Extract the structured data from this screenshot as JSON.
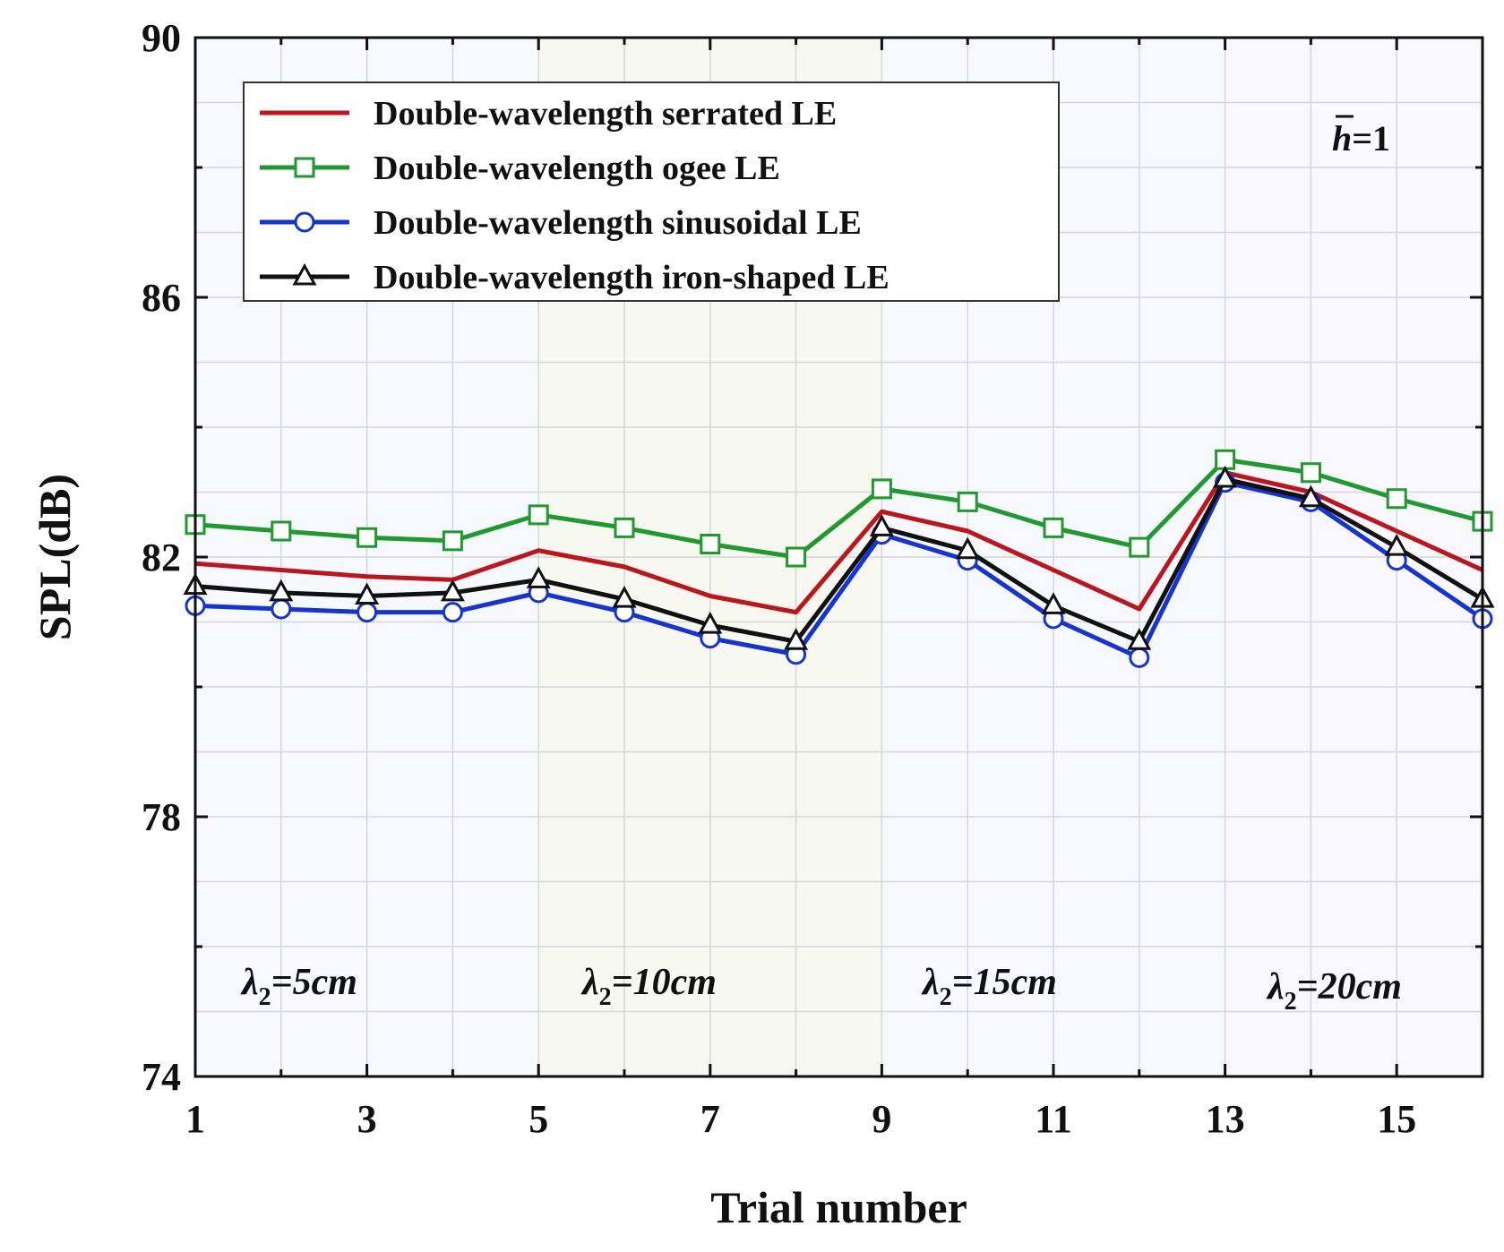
{
  "chart_data": {
    "type": "line",
    "title": "",
    "xlabel": "Trial number",
    "ylabel": "SPL(dB)",
    "xlim": [
      1,
      16
    ],
    "ylim": [
      74,
      90
    ],
    "x": [
      1,
      2,
      3,
      4,
      5,
      6,
      7,
      8,
      9,
      10,
      11,
      12,
      13,
      14,
      15,
      16
    ],
    "xticks": [
      1,
      3,
      5,
      7,
      9,
      11,
      13,
      15
    ],
    "xtick_labels": [
      "1",
      "3",
      "5",
      "7",
      "9",
      "11",
      "13",
      "15"
    ],
    "yticks": [
      74,
      78,
      82,
      86,
      90
    ],
    "ytick_labels": [
      "74",
      "78",
      "82",
      "86",
      "90"
    ],
    "grid": true,
    "legend_position": "top-left",
    "series": [
      {
        "name": "Double-wavelength serrated LE",
        "color": "#c0141c",
        "marker": "none",
        "values": [
          81.9,
          81.8,
          81.7,
          81.65,
          82.1,
          81.85,
          81.4,
          81.15,
          82.7,
          82.4,
          81.8,
          81.2,
          83.3,
          83.0,
          82.4,
          81.8
        ]
      },
      {
        "name": "Double-wavelength ogee LE",
        "color": "#1e9a2e",
        "marker": "square",
        "values": [
          82.5,
          82.4,
          82.3,
          82.25,
          82.65,
          82.45,
          82.2,
          82.0,
          83.05,
          82.85,
          82.45,
          82.15,
          83.5,
          83.3,
          82.9,
          82.55
        ]
      },
      {
        "name": "Double-wavelength sinusoidal LE",
        "color": "#1633d6",
        "marker": "circle",
        "values": [
          81.25,
          81.2,
          81.15,
          81.15,
          81.45,
          81.15,
          80.75,
          80.5,
          82.35,
          81.95,
          81.05,
          80.45,
          83.15,
          82.85,
          81.95,
          81.05
        ]
      },
      {
        "name": "Double-wavelength iron-shaped LE",
        "color": "#111111",
        "marker": "triangle",
        "values": [
          81.55,
          81.45,
          81.4,
          81.45,
          81.65,
          81.35,
          80.95,
          80.7,
          82.45,
          82.1,
          81.25,
          80.7,
          83.2,
          82.9,
          82.15,
          81.35
        ]
      }
    ],
    "regions": [
      {
        "label_prefix": "λ",
        "label_sub": "2",
        "label_rest": "=5cm",
        "x_range": [
          1,
          5
        ],
        "shade": "#f6f9ff"
      },
      {
        "label_prefix": "λ",
        "label_sub": "2",
        "label_rest": "=10cm",
        "x_range": [
          5,
          9
        ],
        "shade": "#f7f8f0"
      },
      {
        "label_prefix": "λ",
        "label_sub": "2",
        "label_rest": "=15cm",
        "x_range": [
          9,
          13
        ],
        "shade": "#f6f9ff"
      },
      {
        "label_prefix": "λ",
        "label_sub": "2",
        "label_rest": "=20cm",
        "x_range": [
          13,
          16
        ],
        "shade": "#f9f7ff"
      }
    ],
    "annotation": {
      "symbol": "h",
      "rest": "=1"
    }
  }
}
